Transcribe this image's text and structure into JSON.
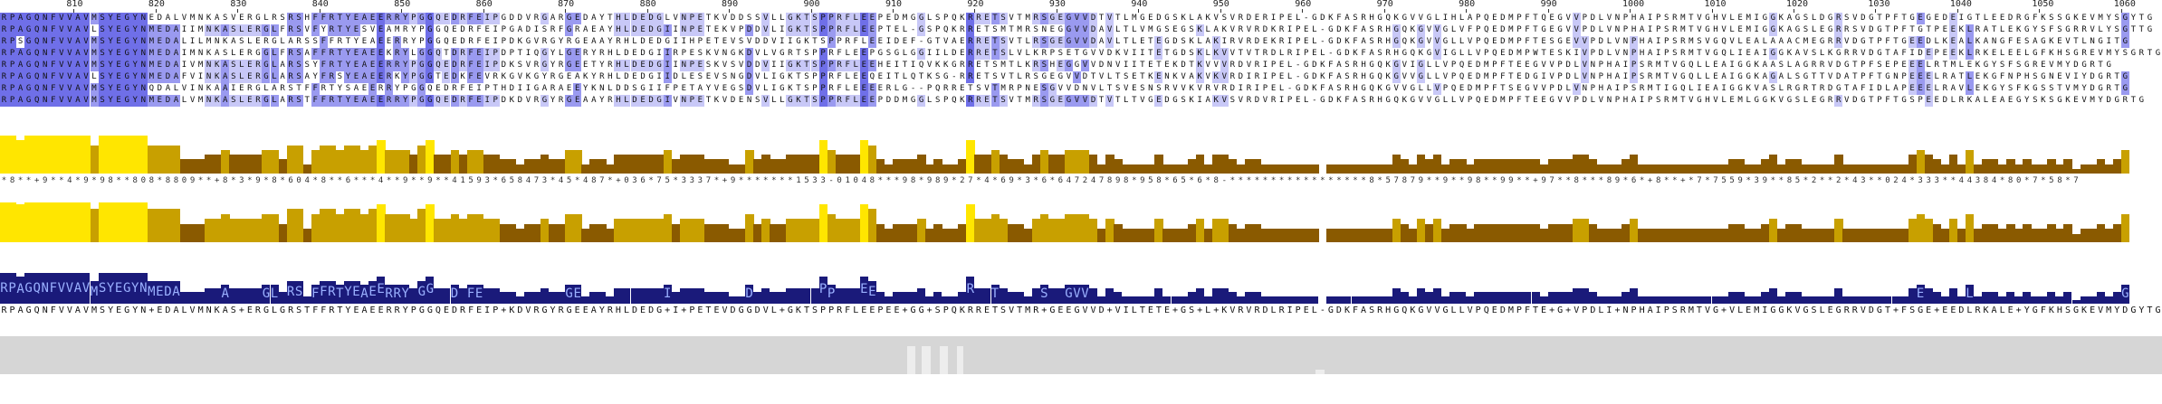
{
  "ruler": {
    "start": 801,
    "labels": [
      "810",
      "820",
      "830",
      "840",
      "850",
      "860",
      "870",
      "880",
      "890",
      "900",
      "910",
      "920",
      "930",
      "940",
      "950",
      "960",
      "970",
      "980",
      "990",
      "1000",
      "1010",
      "1020",
      "1030",
      "1040",
      "1050",
      "1060"
    ]
  },
  "alignment": {
    "colors": {
      "identity_high": "#6f6fe8",
      "identity_mid": "#9a9af0",
      "identity_low": "#c8c8f7",
      "none": "#ffffff"
    },
    "sequences": [
      "RPAGQNFVVAVMSYEGYNEDALVMNKASVERGLRSRSHFFRTYEAEERRYPGGQEDRFEIPGDDVRGARGEDAYTHLDEDGLVNPETKVDDSSVLLGKTSPPRFLEEPEDMGGLSPQKRRETSVTMRSGEGVVDTVTLMGEDGSKLAKVSVRDERIPEL-GDKFASRHGQKGVVGLIHLAPQEDMPFTQEGVVPDLVNPHAIPSRMTVGHVLEMIGGKAGSLDGRSVDGTPFTGEGEDEIGTLEEDRGFKSSGKEVMYSGYTG",
      "RPAGQNFVVAVLSYEGYNMEDAIIMNKASLERGLFRSVFYRTYESVEAMRYPGGQEDRFEIPGADISRFGRAEAYHLDEDGIINPETEKVPDDVLIGKTSPPRFLEEPTEL-GSPQKRRETSMTMRSNEGGVVDAVLTLVMGSEGSKLAKVRVRDKRIPEL-GDKFASRHGQKGVVGLVFPQEDMPFTGEGVVPDLVNPHAIPSRMTVGHVLEMIGGKAGSLEGRRSVDGTPFTGTPEEKLRATLEKGYSFSGRRVLYSGTTG",
      "RPSGQNFVVAVMSYEGYNMEDALILMNKASLERGLARSSFFRTYEAEERRYPGGQEDRFEIPDKGVRGYRGEAAYRHLDEDGIIHPETEVSVDDVIIGKTSPPRFLEEIDEF-GTVAERRETSVTLRSGEGVVDAVLTLETEGDSKLAKIRVRDEKRIPEL-GDKFASRHGQKGVVGLLVPQEDMPFTESGEVVPDLVNPHAIPSRMSVGQVLEALAAACMEGRRVDGTPFTGEEDLKEALKANGFESAGKEVTLNGITG",
      "RPAGQNFVVAVMSYEGYNMEDAIMNKASLERGGLFRSAFFRTYEAEEKRYLGGQTDRFEIPDPTIQGYLGERYRHLDEDGIIRPESKVNGKDVLVGRTSPPRFLEEPGSGLGGIILDERRETSLVLKRPSETGVVDKVIITETGDSKLKVVTVTRDLRIPEL-GDKFASRHGQKGVIGLLVPQEDMPWTESKIVPDLVNPHAIPSRMTVGQLIEAIGGKAVSLKGRRVDGTAFIDEPEEKLRKELEELGFKHSGREVMYSGRTG",
      "RPAGQNFVVAVMSYEGYNMEDAIVMNKASLERGLARSSYFRTYEAEERRYPGGQEDRFEIPDKSVRGYRGEETYRHLDEDGIINPESKVSVDDVIIGKTSPPRFLEEHEITIQVKKGRRETSMTLKRSHEGGVVDNVIITETEKDTKVVVRDVRIPEL-GDKFASRHGQKGVIGLLVPQEDMPFTEEGVVPDLVNPHAIPSRMTVGQLLEAIGGKAASLAGRRVDGTPFSEPEEELRTMLEKGYSFSGREVMYDGRTG",
      "RPAGQNFVVAVLSYEGYNMEDAFVINKASLERGLARSAYFRSYEAEERKYPGGTEDKFEVRKGVKGYRGEAKYRHLDEDGIIDLESEVSNGDVLIGKTSPPRFLEEQEITLQTKSG-RRETSVTLRSGEGVVDTVLTSETKENKVAKVKVRDIRIPEL-GDKFASRHGQKGVVGLLVPQEDMPFTEDGIVPDLVNPHAIPSRMTVGQLLEAIGGKAGALSGTTVDATPFTGNPEEELRATLEKGFNPHSGNEVIYDGRTG",
      "RPAGQNFVVAVMSYEGYNQDALVINKAAIERGLARSTFFRTYSAEERRYPGGQEDRFEIPTHDIIGARAEEYKNLDDSGIIFPETAYVEGSDVLIGKTSPPRFLEEEERLG--PQRRETSVTMRPNESGVVDNVLTSVESNSRVVKVRVRDIRIPEL-GDKFASRHGQKGVVGLLVPQEDMPFTSEGVVPDLVNPHAIPSRMTIGQLIEAIGGKVASLRGRTRDGTAFIDLAPEEELRAVLEKGYSFKGSSTVMYDGRTG",
      "RPAGQNFVVAVMSYEGYNMEDALVMNKASLERGLARSTFFRTYEAEERRYPGGQEDRFEIPDKDVRGYRGEAAYRHLDEDGIVNPETKVDENSVLLGKTSPPRFLEEPDDMGGLSPQKRRETSVTMRSGEGVVDTVTLTVGEDGSKIAKVSVRDVRIPEL-GDKFASRHGQKGVVGLLVPQEDMPFTEEGVVPDLVNPHAIPSRMTVGHVLEMLGGKVGSLEGRRVDGTPFTGSPEEDLRKALEAEGYSKSGKEVMYDGRTG"
    ]
  },
  "annotations": {
    "colors": {
      "high": "#ffe600",
      "mid": "#c8a000",
      "low": "#8a5a00"
    },
    "conservation_numbers": "*8**+9**4*9*98**808*8809**+8*3*9*8*604*8**6***4**9**9**41593*658473*45*487*+036*75*3337*+9*******1533-01048***98*989*27*4*69*3*6*647247898*958*65*6*8-*****************8*57879**9**98**99**+97**8***89*6*+8**+*7*7559*39**85*2**2*43**024*333**44384*80*7*58*7",
    "consensus": "RPAGQNFVVAVMSYEGYN+EDALVMNKAS+ERGLGRSTFFRTYEAEERRYPGGQEDRFEIP+KDVRGYRGEEAYRHLDEDG+I+PETEVDGGDVL+GKTSPPRFLEEPEE+GG+SPQKRRETSVTMR+GEEGVVD+VILTETE+GS+L+KVRVRDLRIPEL-GDKFASRHGQKGVVGLLVPQEDMPFTE+G+VPDLI+NPHAIPSRMTVG+VLEMIGGKVGSLEGRRVDGT+FSGE+EEDLRKALE+YGFKHSGKEVMYDGYTG"
  },
  "occupancy": {
    "gaps": [
      {
        "start": 0.4195,
        "width": 0.004,
        "level": 0.75
      },
      {
        "start": 0.4265,
        "width": 0.004,
        "level": 0.75
      },
      {
        "start": 0.4345,
        "width": 0.004,
        "level": 0.75
      },
      {
        "start": 0.4425,
        "width": 0.003,
        "level": 0.75
      },
      {
        "start": 0.6085,
        "width": 0.004,
        "level": 0.12
      }
    ]
  }
}
